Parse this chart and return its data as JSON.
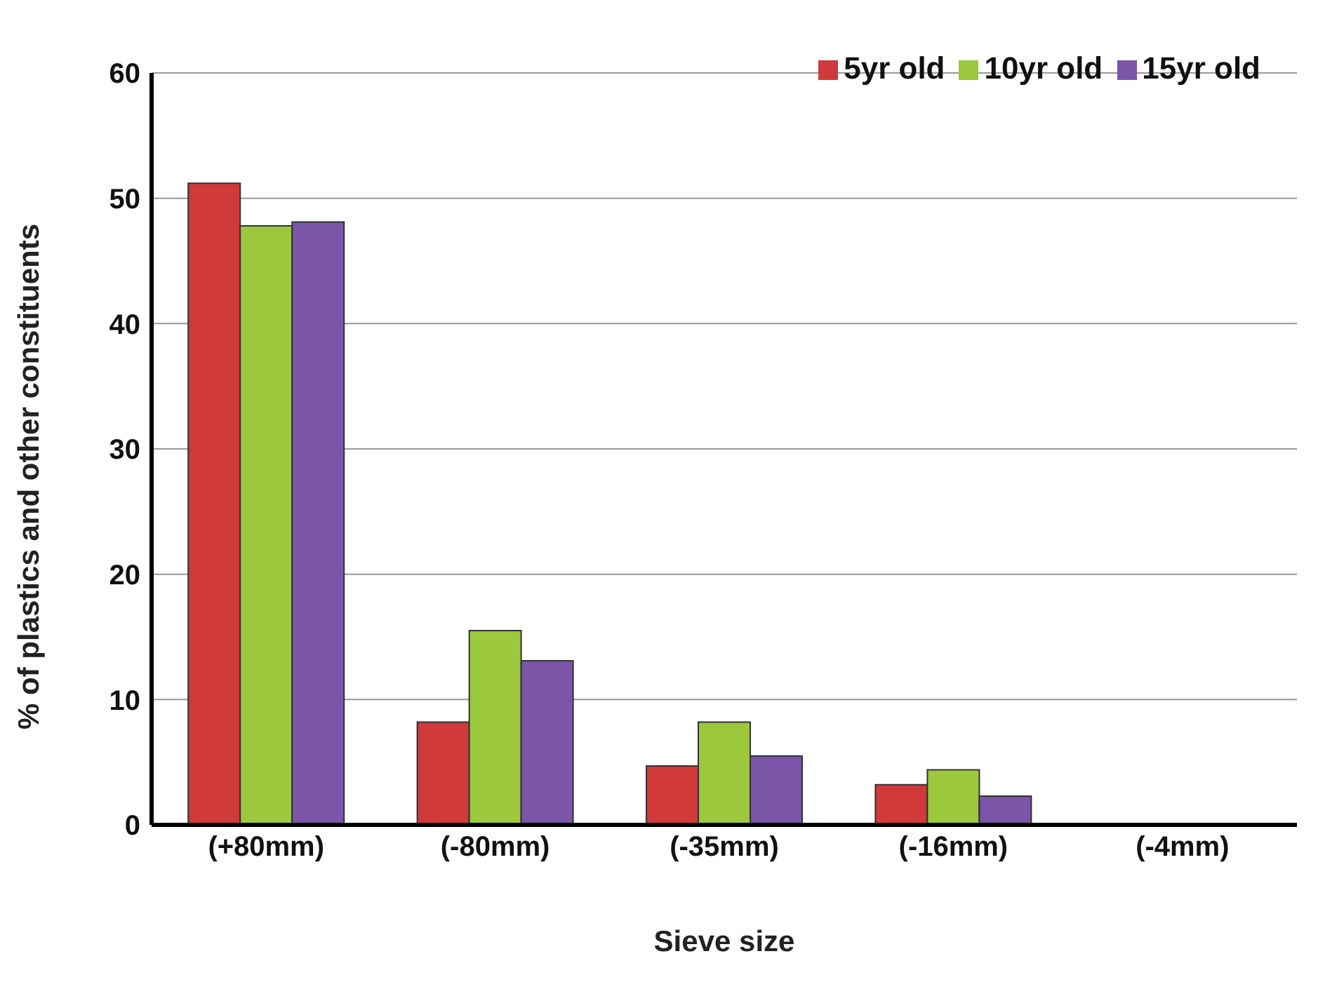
{
  "chart_data": {
    "type": "bar",
    "xlabel": "Sieve size",
    "ylabel": "% of plastics and other constituents",
    "categories": [
      "(+80mm)",
      "(-80mm)",
      "(-35mm)",
      "(-16mm)",
      "(-4mm)"
    ],
    "series": [
      {
        "name": "5yr old",
        "color": "#d03a3a",
        "values": [
          51.2,
          8.2,
          4.7,
          3.2,
          0
        ]
      },
      {
        "name": "10yr old",
        "color": "#9bc83c",
        "values": [
          47.8,
          15.5,
          8.2,
          4.4,
          0
        ]
      },
      {
        "name": "15yr old",
        "color": "#7a55a8",
        "values": [
          48.1,
          13.1,
          5.5,
          2.3,
          0
        ]
      }
    ],
    "ylim": [
      0,
      60
    ],
    "yticks": [
      0,
      10,
      20,
      30,
      40,
      50,
      60
    ],
    "grid": "y",
    "legend": "top right"
  }
}
